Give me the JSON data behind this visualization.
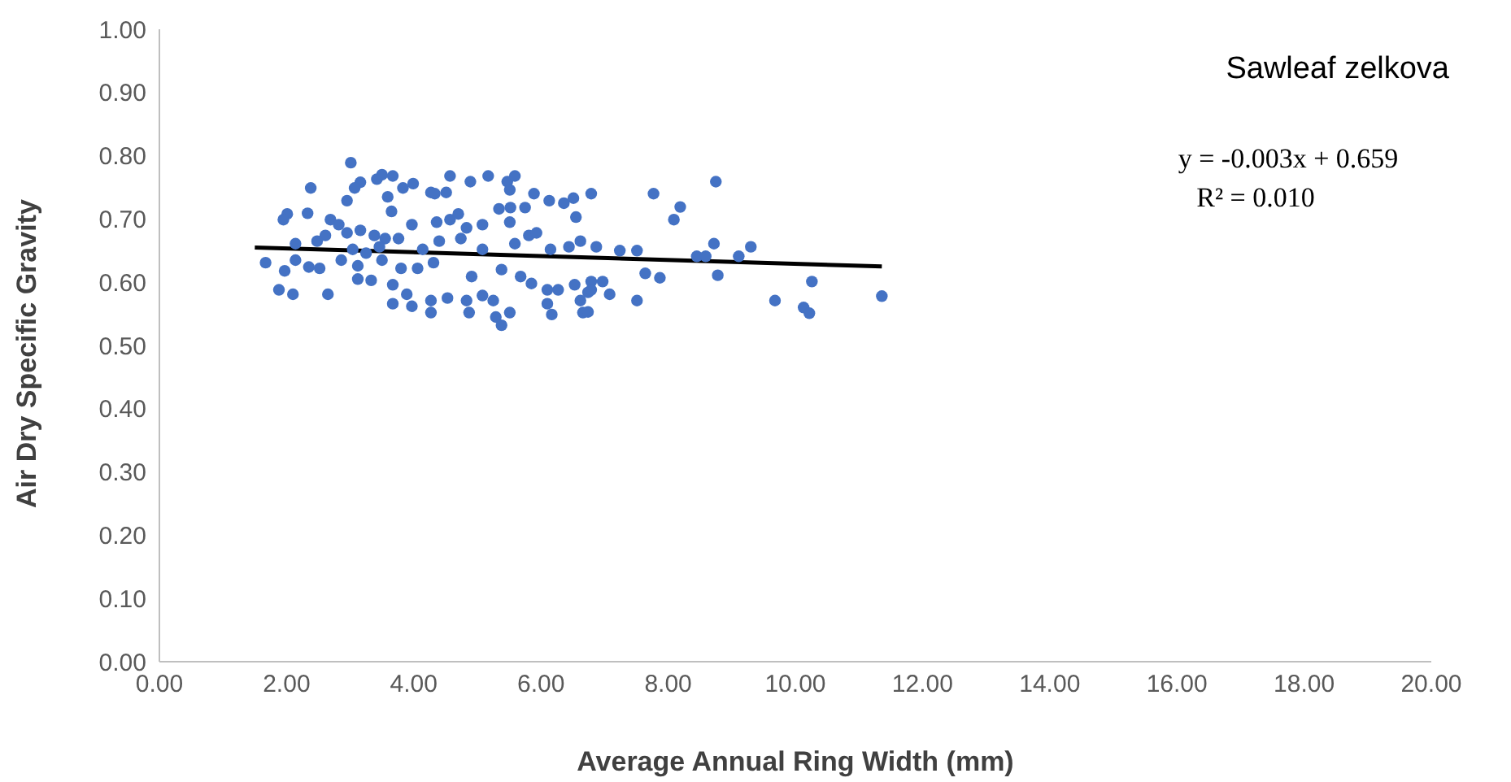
{
  "chart_data": {
    "type": "scatter",
    "xlabel": "Average Annual Ring Width (mm)",
    "ylabel": "Air Dry Specific Gravity",
    "annotations": [
      "Sawleaf zelkova",
      "y = -0.003x + 0.659",
      "R² = 0.010"
    ],
    "xlim": [
      0,
      20
    ],
    "xticks": [
      {
        "value": 0,
        "label": "0.00"
      },
      {
        "value": 2,
        "label": "2.00"
      },
      {
        "value": 4,
        "label": "4.00"
      },
      {
        "value": 6,
        "label": "6.00"
      },
      {
        "value": 8,
        "label": "8.00"
      },
      {
        "value": 10,
        "label": "10.00"
      },
      {
        "value": 12,
        "label": "12.00"
      },
      {
        "value": 14,
        "label": "14.00"
      },
      {
        "value": 16,
        "label": "16.00"
      },
      {
        "value": 18,
        "label": "18.00"
      },
      {
        "value": 20,
        "label": "20.00"
      }
    ],
    "ylim": [
      0,
      1
    ],
    "yticks": [
      {
        "value": 0,
        "label": "0.00"
      },
      {
        "value": 0.1,
        "label": "0.10"
      },
      {
        "value": 0.2,
        "label": "0.20"
      },
      {
        "value": 0.3,
        "label": "0.30"
      },
      {
        "value": 0.4,
        "label": "0.40"
      },
      {
        "value": 0.5,
        "label": "0.50"
      },
      {
        "value": 0.6,
        "label": "0.60"
      },
      {
        "value": 0.7,
        "label": "0.70"
      },
      {
        "value": 0.8,
        "label": "0.80"
      },
      {
        "value": 0.9,
        "label": "0.90"
      },
      {
        "value": 1,
        "label": "1.00"
      }
    ],
    "grid": false,
    "legend": false,
    "marker": "circle",
    "series": [
      {
        "color": "#4472c4",
        "x": [
          3.01,
          2.38,
          3.16,
          3.07,
          3.42,
          3.5,
          3.67,
          3.83,
          3.99,
          4.27,
          4.33,
          4.57,
          4.51,
          4.89,
          5.17,
          5.47,
          5.59,
          5.51,
          5.89,
          6.13,
          6.36,
          6.51,
          6.79,
          2.95,
          3.59,
          3.65,
          2.01,
          1.95,
          2.33,
          2.69,
          2.82,
          2.95,
          3.16,
          3.38,
          3.55,
          3.76,
          3.97,
          4.36,
          4.57,
          4.7,
          4.83,
          5.08,
          5.34,
          5.52,
          5.75,
          5.51,
          5.81,
          5.93,
          6.55,
          6.62,
          2.61,
          2.48,
          2.14,
          4.4,
          4.74,
          5.08,
          5.59,
          6.15,
          6.44,
          1.67,
          1.97,
          2.35,
          2.52,
          2.86,
          3.12,
          3.5,
          3.8,
          4.06,
          4.31,
          4.91,
          5.38,
          5.68,
          5.85,
          6.1,
          6.27,
          6.53,
          6.79,
          1.88,
          2.1,
          2.65,
          3.12,
          3.33,
          3.67,
          3.89,
          3.67,
          3.97,
          4.27,
          4.27,
          4.53,
          4.83,
          4.87,
          5.08,
          5.25,
          5.29,
          5.38,
          5.51,
          6.1,
          6.17,
          6.62,
          6.66,
          6.74,
          3.46,
          3.04,
          4.14,
          2.14,
          3.25,
          7.77,
          8.75,
          8.19,
          8.09,
          8.72,
          9.3,
          6.87,
          7.24,
          7.51,
          8.45,
          8.59,
          9.11,
          7.64,
          7.87,
          8.78,
          6.97,
          7.08,
          7.51,
          9.68,
          10.26,
          10.13,
          10.22,
          11.36,
          6.79,
          6.74
        ],
        "values": [
          0.789,
          0.749,
          0.758,
          0.749,
          0.763,
          0.77,
          0.768,
          0.749,
          0.756,
          0.742,
          0.74,
          0.768,
          0.742,
          0.759,
          0.768,
          0.759,
          0.768,
          0.746,
          0.74,
          0.729,
          0.725,
          0.733,
          0.74,
          0.729,
          0.735,
          0.712,
          0.708,
          0.699,
          0.709,
          0.699,
          0.691,
          0.678,
          0.682,
          0.674,
          0.669,
          0.669,
          0.691,
          0.695,
          0.699,
          0.708,
          0.686,
          0.691,
          0.716,
          0.718,
          0.718,
          0.695,
          0.674,
          0.678,
          0.703,
          0.665,
          0.674,
          0.665,
          0.661,
          0.665,
          0.669,
          0.652,
          0.661,
          0.652,
          0.656,
          0.631,
          0.618,
          0.624,
          0.622,
          0.635,
          0.626,
          0.635,
          0.622,
          0.622,
          0.631,
          0.609,
          0.62,
          0.609,
          0.598,
          0.588,
          0.588,
          0.596,
          0.601,
          0.588,
          0.581,
          0.581,
          0.605,
          0.603,
          0.596,
          0.581,
          0.566,
          0.562,
          0.571,
          0.552,
          0.575,
          0.571,
          0.552,
          0.579,
          0.571,
          0.545,
          0.532,
          0.552,
          0.566,
          0.549,
          0.571,
          0.552,
          0.584,
          0.656,
          0.652,
          0.652,
          0.635,
          0.646,
          0.74,
          0.759,
          0.719,
          0.699,
          0.661,
          0.656,
          0.656,
          0.65,
          0.65,
          0.641,
          0.641,
          0.641,
          0.614,
          0.607,
          0.611,
          0.601,
          0.581,
          0.571,
          0.571,
          0.601,
          0.56,
          0.551,
          0.578,
          0.588,
          0.553
        ]
      },
      {
        "type": "line",
        "color": "#000000",
        "x": [
          1.5,
          11.36
        ],
        "values": [
          0.655,
          0.625
        ],
        "line_style": "solid",
        "marker": "none"
      }
    ]
  }
}
